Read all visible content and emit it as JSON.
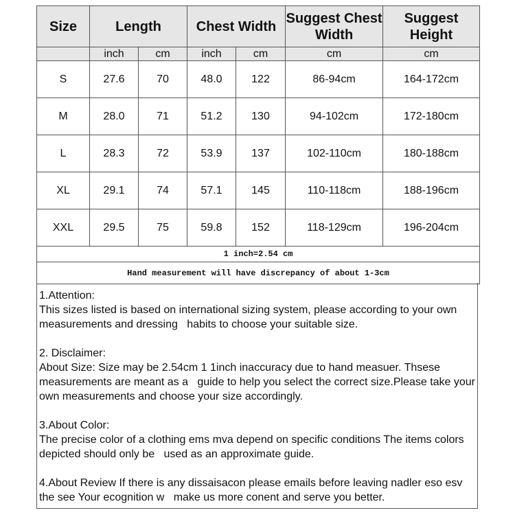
{
  "headers": {
    "size": "Size",
    "length": "Length",
    "chest": "Chest Width",
    "suggest_chest": "Suggest Chest Width",
    "suggest_height": "Suggest Height"
  },
  "units": [
    "inch",
    "cm",
    "inch",
    "cm",
    "cm",
    "cm"
  ],
  "rows": [
    [
      "S",
      "27.6",
      "70",
      "48.0",
      "122",
      "86-94cm",
      "164-172cm"
    ],
    [
      "M",
      "28.0",
      "71",
      "51.2",
      "130",
      "94-102cm",
      "172-180cm"
    ],
    [
      "L",
      "28.3",
      "72",
      "53.9",
      "137",
      "102-110cm",
      "180-188cm"
    ],
    [
      "XL",
      "29.1",
      "74",
      "57.1",
      "145",
      "110-118cm",
      "188-196cm"
    ],
    [
      "XXL",
      "29.5",
      "75",
      "59.8",
      "152",
      "118-129cm",
      "196-204cm"
    ]
  ],
  "conversion": "1 inch=2.54 cm",
  "discrepancy": "Hand measurement will have discrepancy of about 1-3cm",
  "notes": [
    {
      "title": "1.Attention:",
      "body": "This sizes listed is based on international sizing system, please according to your own measurements and dressing   habits to choose your suitable size."
    },
    {
      "title": "2. Disclaimer:",
      "body": "About Size: Size may be 2.54cm 1 1inch inaccuracy due to hand measuer. Thsese measurements are meant as a   guide to help you select the correct size.Please take your own measurements and choose your size accordingly."
    },
    {
      "title": "3.About Color:",
      "body": "The precise color of a clothing ems mva depend on specific conditions The items colors depicted should only be   used as an approximate guide."
    },
    {
      "title": "",
      "body": "4.About Review If there is any dissaisacon please emails before leaving nadler eso esv the see Your ecognition w   make us more conent and serve you better."
    }
  ]
}
